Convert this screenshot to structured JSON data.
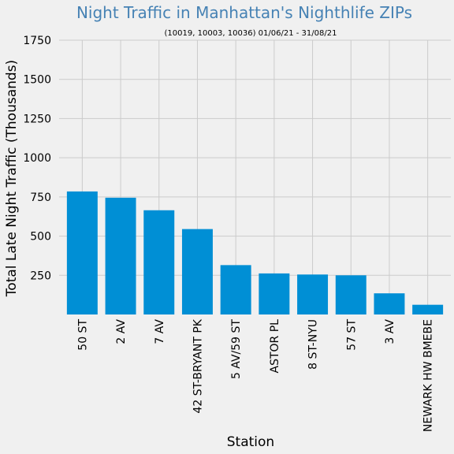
{
  "chart_data": {
    "type": "bar",
    "title": "Night Traffic in Manhattan's Nighthlife ZIPs",
    "subtitle": "(10019, 10003, 10036) 01/06/21 - 31/08/21",
    "xlabel": "Station",
    "ylabel": "Total Late Night Traffic (Thousands)",
    "categories": [
      "50 ST",
      "2 AV",
      "7 AV",
      "42 ST-BRYANT PK",
      "5 AV/59 ST",
      "ASTOR PL",
      "8 ST-NYU",
      "57 ST",
      "3 AV",
      "NEWARK HW BMEBE"
    ],
    "values": [
      785,
      745,
      665,
      545,
      315,
      262,
      255,
      250,
      135,
      62
    ],
    "yticks": [
      250,
      500,
      750,
      1000,
      1250,
      1500,
      1750
    ],
    "ylim": [
      0,
      1750
    ],
    "grid": true,
    "bar_color": "#008fd5",
    "title_color": "#4682b4",
    "background": "#f0f0f0"
  }
}
